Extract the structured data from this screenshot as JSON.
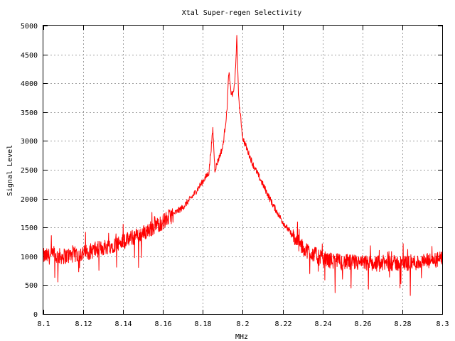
{
  "chart_data": {
    "type": "line",
    "title": "Xtal Super-regen Selectivity",
    "xlabel": "MHz",
    "ylabel": "Signal Level",
    "xlim": [
      8.1,
      8.3
    ],
    "ylim": [
      0,
      5000
    ],
    "x_ticks": [
      "8.1",
      "8.12",
      "8.14",
      "8.16",
      "8.18",
      "8.2",
      "8.22",
      "8.24",
      "8.26",
      "8.28",
      "8.3"
    ],
    "y_ticks": [
      "0",
      "500",
      "1000",
      "1500",
      "2000",
      "2500",
      "3000",
      "3500",
      "4000",
      "4500",
      "5000"
    ],
    "grid": true,
    "series": [
      {
        "color": "#ff0000",
        "noise": "high-frequency jitter around the envelope, roughly +/-150 off-peak",
        "x": [
          8.1,
          8.11,
          8.12,
          8.13,
          8.14,
          8.15,
          8.16,
          8.17,
          8.175,
          8.18,
          8.183,
          8.185,
          8.186,
          8.187,
          8.19,
          8.192,
          8.193,
          8.194,
          8.195,
          8.196,
          8.197,
          8.198,
          8.2,
          8.205,
          8.21,
          8.215,
          8.22,
          8.225,
          8.23,
          8.24,
          8.25,
          8.26,
          8.27,
          8.28,
          8.29,
          8.3
        ],
        "y": [
          1000,
          1000,
          1050,
          1150,
          1250,
          1400,
          1600,
          1850,
          2050,
          2300,
          2450,
          3200,
          2500,
          2600,
          2900,
          3500,
          4200,
          3850,
          3800,
          4000,
          4780,
          3700,
          3050,
          2600,
          2250,
          1900,
          1600,
          1350,
          1150,
          950,
          900,
          880,
          880,
          880,
          900,
          950
        ]
      }
    ]
  }
}
